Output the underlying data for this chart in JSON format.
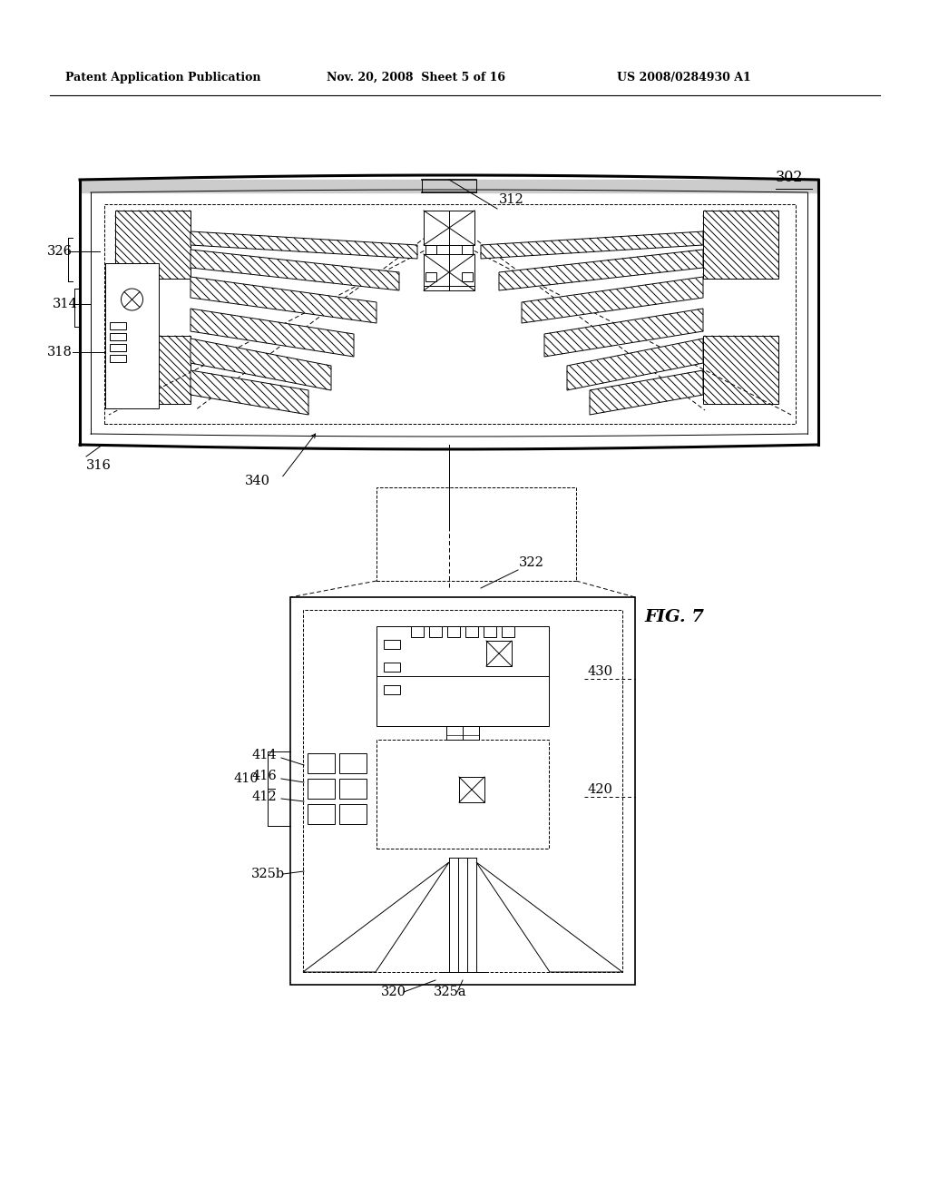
{
  "bg_color": "#ffffff",
  "header_left": "Patent Application Publication",
  "header_mid": "Nov. 20, 2008  Sheet 5 of 16",
  "header_right": "US 2008/0284930 A1",
  "fig_label": "FIG. 7",
  "label_302": "302",
  "label_312": "312",
  "label_316": "316",
  "label_314": "314",
  "label_318": "318",
  "label_326": "326",
  "label_340": "340",
  "label_322": "322",
  "label_320": "320",
  "label_325a": "325a",
  "label_325b": "325b",
  "label_410": "410",
  "label_412": "412",
  "label_414": "414",
  "label_416": "416",
  "label_420": "420",
  "label_430": "430"
}
